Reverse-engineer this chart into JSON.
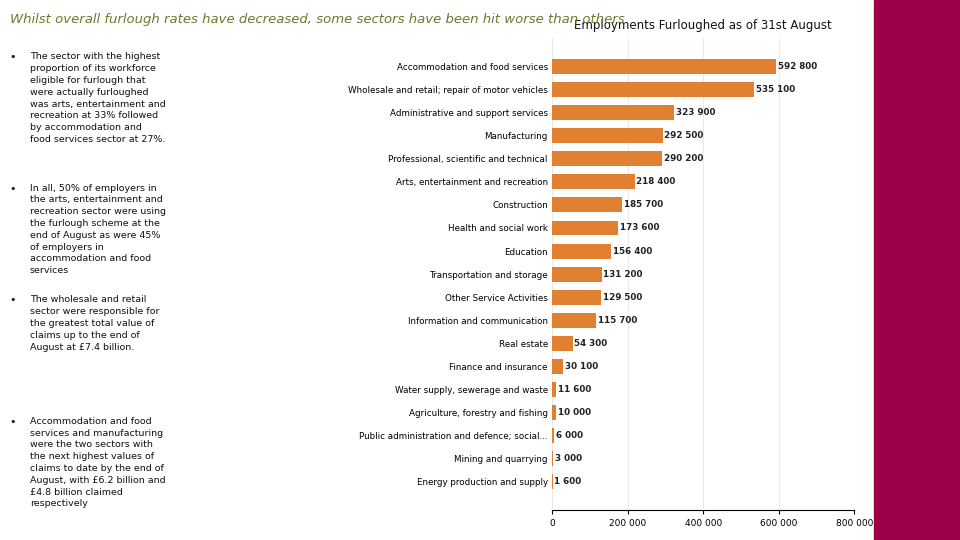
{
  "title": "Whilst overall furlough rates have decreased, some sectors have been hit worse than others",
  "chart_title": "Employments Furloughed as of 31st August",
  "title_color": "#6b7a2e",
  "background_color": "#ffffff",
  "bar_color": "#e08030",
  "categories": [
    "Accommodation and food services",
    "Wholesale and retail; repair of motor vehicles",
    "Administrative and support services",
    "Manufacturing",
    "Professional, scientific and technical",
    "Arts, entertainment and recreation",
    "Construction",
    "Health and social work",
    "Education",
    "Transportation and storage",
    "Other Service Activities",
    "Information and communication",
    "Real estate",
    "Finance and insurance",
    "Water supply, sewerage and waste",
    "Agriculture, forestry and fishing",
    "Public administration and defence; social...",
    "Mining and quarrying",
    "Energy production and supply"
  ],
  "values": [
    592800,
    535100,
    323900,
    292500,
    290200,
    218400,
    185700,
    173600,
    156400,
    131200,
    129500,
    115700,
    54300,
    30100,
    11600,
    10000,
    6000,
    3000,
    1600
  ],
  "value_labels": [
    "592 800",
    "535 100",
    "323 900",
    "292 500",
    "290 200",
    "218 400",
    "185 700",
    "173 600",
    "156 400",
    "131 200",
    "129 500",
    "115 700",
    "54 300",
    "30 100",
    "11 600",
    "10 000",
    "6 000",
    "3 000",
    "1 600"
  ],
  "xlim": [
    0,
    800000
  ],
  "xticks": [
    0,
    200000,
    400000,
    600000,
    800000
  ],
  "xtick_labels": [
    "0",
    "200 000",
    "400 000",
    "600 000",
    "800 000"
  ],
  "bullet_points": [
    "The sector with the highest\nproportion of its workforce\neligible for furlough that\nwere actually furloughed\nwas arts, entertainment and\nrecreation at 33% followed\nby accommodation and\nfood services sector at 27%.",
    "In all, 50% of employers in\nthe arts, entertainment and\nrecreation sector were using\nthe furlough scheme at the\nend of August as were 45%\nof employers in\naccommodation and food\nservices",
    "The wholesale and retail\nsector were responsible for\nthe greatest total value of\nclaims up to the end of\nAugust at £7.4 billion.",
    "Accommodation and food\nservices and manufacturing\nwere the two sectors with\nthe next highest values of\nclaims to date by the end of\nAugust, with £6.2 billion and\n£4.8 billion claimed\nrespectively"
  ],
  "right_panel_color": "#9b0048",
  "logo_color": "#ffffff"
}
